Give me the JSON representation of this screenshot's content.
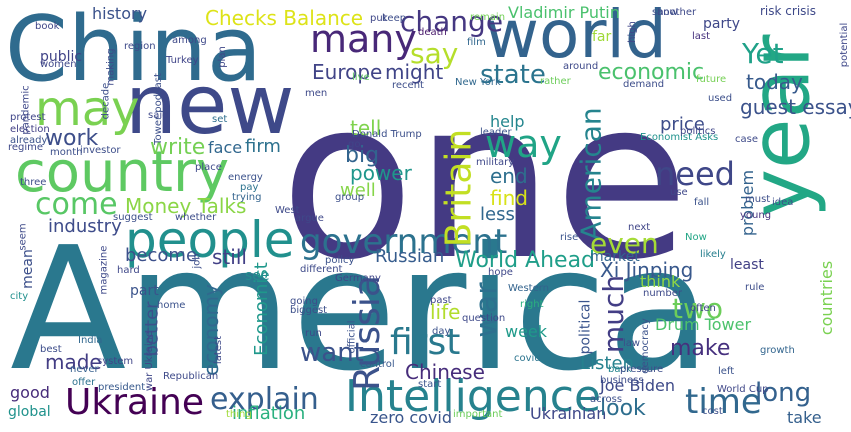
{
  "words": [
    {
      "text": "America",
      "color": "#2a788e"
    },
    {
      "text": "one",
      "color": "#443a83"
    },
    {
      "text": "China",
      "color": "#2f6b8e"
    },
    {
      "text": "new",
      "color": "#3e4989"
    },
    {
      "text": "world",
      "color": "#33638d"
    },
    {
      "text": "year",
      "color": "#22a785"
    },
    {
      "text": "country",
      "color": "#5ec962"
    },
    {
      "text": "people",
      "color": "#21908d"
    },
    {
      "text": "may",
      "color": "#7ad151"
    },
    {
      "text": "Intelligence",
      "color": "#26828e"
    },
    {
      "text": "Ukraine",
      "color": "#440154"
    },
    {
      "text": "government",
      "color": "#2c728e"
    },
    {
      "text": "explain",
      "color": "#355f8d"
    },
    {
      "text": "Russia",
      "color": "#3b528b"
    },
    {
      "text": "many",
      "color": "#482878"
    },
    {
      "text": "time",
      "color": "#31688e"
    },
    {
      "text": "first",
      "color": "#29798e"
    },
    {
      "text": "Britain",
      "color": "#c2df23"
    },
    {
      "text": "WorldAhead",
      "color": "#35b779"
    },
    {
      "text": "way",
      "color": "#20a486"
    },
    {
      "text": "American",
      "color": "#25848e"
    },
    {
      "text": "much",
      "color": "#433e85"
    },
    {
      "text": "need",
      "color": "#3f4788"
    },
    {
      "text": "war",
      "color": "#2d708e"
    },
    {
      "text": "come",
      "color": "#58c765"
    },
    {
      "text": "say",
      "color": "#b5de2b"
    },
    {
      "text": "change",
      "color": "#453781"
    },
    {
      "text": "economic",
      "color": "#4ac16d"
    },
    {
      "text": "even",
      "color": "#a5db36"
    },
    {
      "text": "long",
      "color": "#34618d"
    },
    {
      "text": "two",
      "color": "#6ccd5a"
    },
    {
      "text": "Yet",
      "color": "#1fa188"
    },
    {
      "text": "want",
      "color": "#3b528b"
    },
    {
      "text": "make",
      "color": "#46307e"
    },
    {
      "text": "Chinese",
      "color": "#472d7b"
    },
    {
      "text": "World Ahead",
      "color": "#1f9e89"
    },
    {
      "text": "Xi Jinping",
      "color": "#38588c"
    },
    {
      "text": "Checks Balance",
      "color": "#dde318"
    },
    {
      "text": "state",
      "color": "#2b748e"
    },
    {
      "text": "Europe",
      "color": "#414487"
    },
    {
      "text": "might",
      "color": "#404588"
    },
    {
      "text": "today",
      "color": "#375a8c"
    },
    {
      "text": "guest essay",
      "color": "#3b528b"
    },
    {
      "text": "write",
      "color": "#75d054"
    },
    {
      "text": "work",
      "color": "#3d4e8a"
    },
    {
      "text": "big",
      "color": "#32648e"
    },
    {
      "text": "power",
      "color": "#1f968b"
    },
    {
      "text": "end",
      "color": "#2e6f8e"
    },
    {
      "text": "tell",
      "color": "#7fd34e"
    },
    {
      "text": "find",
      "color": "#d8e219"
    },
    {
      "text": "well",
      "color": "#86d549"
    },
    {
      "text": "less",
      "color": "#31678e"
    },
    {
      "text": "Money Talks",
      "color": "#8bd646"
    },
    {
      "text": "industry",
      "color": "#3e4c8a"
    },
    {
      "text": "become",
      "color": "#3c508b"
    },
    {
      "text": "still",
      "color": "#424086"
    },
    {
      "text": "Russian",
      "color": "#365c8d"
    },
    {
      "text": "life",
      "color": "#b2dd2d"
    },
    {
      "text": "week",
      "color": "#1f9a8a"
    },
    {
      "text": "Listen",
      "color": "#26818e"
    },
    {
      "text": "Joe Biden",
      "color": "#3e4a89"
    },
    {
      "text": "Ukrainian",
      "color": "#3f4889"
    },
    {
      "text": "look",
      "color": "#2e6e8e"
    },
    {
      "text": "inflation",
      "color": "#2ab07f"
    },
    {
      "text": "zero covid",
      "color": "#39558c"
    },
    {
      "text": "Economist",
      "color": "#1f988b"
    },
    {
      "text": "economy",
      "color": "#31688e"
    },
    {
      "text": "better",
      "color": "#3b518b"
    },
    {
      "text": "made",
      "color": "#433d84"
    },
    {
      "text": "good",
      "color": "#472c7a"
    },
    {
      "text": "global",
      "color": "#20928c"
    },
    {
      "text": "history",
      "color": "#3b528b"
    },
    {
      "text": "Vladimir Putin",
      "color": "#4ac16d"
    },
    {
      "text": "public",
      "color": "#404387"
    },
    {
      "text": "face",
      "color": "#31678e"
    },
    {
      "text": "firm",
      "color": "#2d718e"
    },
    {
      "text": "price",
      "color": "#3d4d8a"
    },
    {
      "text": "help",
      "color": "#24868e"
    },
    {
      "text": "political",
      "color": "#3a548c"
    },
    {
      "text": "problem",
      "color": "#33628d"
    },
    {
      "text": "think",
      "color": "#8fd744"
    },
    {
      "text": "Drum Tower",
      "color": "#4cc26c"
    },
    {
      "text": "countries",
      "color": "#7ad151"
    },
    {
      "text": "party",
      "color": "#3f4889"
    },
    {
      "text": "market",
      "color": "#32658e"
    },
    {
      "text": "least",
      "color": "#424186"
    },
    {
      "text": "take",
      "color": "#35608d"
    },
    {
      "text": "mean",
      "color": "#3c4f8a"
    },
    {
      "text": "part",
      "color": "#3a538b"
    },
    {
      "text": "see",
      "color": "#228c8d"
    },
    {
      "text": "risk crisis",
      "color": "#3e4989"
    },
    {
      "text": "book",
      "color": "#404688"
    },
    {
      "text": "put",
      "color": "#3f4788"
    },
    {
      "text": "remain",
      "color": "#73d056"
    },
    {
      "text": "show",
      "color": "#3d4e8a"
    },
    {
      "text": "high",
      "color": "#404688"
    },
    {
      "text": "last",
      "color": "#46327e"
    },
    {
      "text": "region",
      "color": "#3e4a89"
    },
    {
      "text": "among",
      "color": "#3e4989"
    },
    {
      "text": "Turkey",
      "color": "#404588"
    },
    {
      "text": "women",
      "color": "#3f4889"
    },
    {
      "text": "death",
      "color": "#48186a"
    },
    {
      "text": "film",
      "color": "#31678e"
    },
    {
      "text": "far",
      "color": "#a0da39"
    },
    {
      "text": "future",
      "color": "#75d054"
    },
    {
      "text": "New York",
      "color": "#31688e"
    },
    {
      "text": "Donald Trump",
      "color": "#3c4f8a"
    },
    {
      "text": "Economist Asks",
      "color": "#20928c"
    },
    {
      "text": "energy",
      "color": "#3b528b"
    },
    {
      "text": "pay",
      "color": "#2c738e"
    },
    {
      "text": "trying",
      "color": "#33638d"
    },
    {
      "text": "three",
      "color": "#3d4d8a"
    },
    {
      "text": "West",
      "color": "#3e4a89"
    },
    {
      "text": "argue",
      "color": "#3f4889"
    },
    {
      "text": "young",
      "color": "#46337f"
    },
    {
      "text": "idea",
      "color": "#3c4f8a"
    },
    {
      "text": "next",
      "color": "#404688"
    },
    {
      "text": "likely",
      "color": "#277f8e"
    },
    {
      "text": "rise",
      "color": "#3a538b"
    },
    {
      "text": "Now",
      "color": "#21a585"
    },
    {
      "text": "hope",
      "color": "#3f4889"
    },
    {
      "text": "Western",
      "color": "#33638d"
    },
    {
      "text": "rule",
      "color": "#3d4d8a"
    },
    {
      "text": "often",
      "color": "#404688"
    },
    {
      "text": "growth",
      "color": "#32658e"
    },
    {
      "text": "left",
      "color": "#3b528b"
    },
    {
      "text": "back",
      "color": "#25858e"
    },
    {
      "text": "business",
      "color": "#3d4d8a"
    },
    {
      "text": "World Cup",
      "color": "#3f4788"
    },
    {
      "text": "question",
      "color": "#3e4989"
    },
    {
      "text": "day",
      "color": "#3b528b"
    },
    {
      "text": "past",
      "color": "#3f4889"
    },
    {
      "text": "right",
      "color": "#2ab07f"
    },
    {
      "text": "covid",
      "color": "#2b748e"
    },
    {
      "text": "start",
      "color": "#3a548c"
    },
    {
      "text": "law",
      "color": "#3c4f8a"
    },
    {
      "text": "important",
      "color": "#6ccd5a"
    },
    {
      "text": "thing",
      "color": "#a0da39"
    },
    {
      "text": "president",
      "color": "#38598c"
    },
    {
      "text": "Republican",
      "color": "#3e4a89"
    },
    {
      "text": "offer",
      "color": "#2c728e"
    },
    {
      "text": "never",
      "color": "#355f8d"
    },
    {
      "text": "best",
      "color": "#3d4d8a"
    },
    {
      "text": "India",
      "color": "#31688e"
    },
    {
      "text": "system",
      "color": "#404588"
    },
    {
      "text": "city",
      "color": "#21908d"
    },
    {
      "text": "regime",
      "color": "#3e4989"
    },
    {
      "text": "month",
      "color": "#3c4f8a"
    },
    {
      "text": "investor",
      "color": "#3d4e8a"
    },
    {
      "text": "election",
      "color": "#424086"
    },
    {
      "text": "protest",
      "color": "#404688"
    },
    {
      "text": "already",
      "color": "#3b528b"
    },
    {
      "text": "making",
      "color": "#3e4a89"
    },
    {
      "text": "said",
      "color": "#3f4889"
    },
    {
      "text": "set",
      "color": "#2e6e8e"
    },
    {
      "text": "go",
      "color": "#404588"
    },
    {
      "text": "men",
      "color": "#3e4989"
    },
    {
      "text": "live",
      "color": "#5ec962"
    },
    {
      "text": "control",
      "color": "#38598c"
    },
    {
      "text": "recent",
      "color": "#3d4e8a"
    },
    {
      "text": "group",
      "color": "#3c4f8a"
    },
    {
      "text": "leader",
      "color": "#3b528b"
    },
    {
      "text": "military",
      "color": "#3f4889"
    },
    {
      "text": "politics",
      "color": "#404688"
    },
    {
      "text": "case",
      "color": "#3e4a89"
    },
    {
      "text": "used",
      "color": "#3c4f8a"
    },
    {
      "text": "demand",
      "color": "#3d4d8a"
    },
    {
      "text": "around",
      "color": "#3e4989"
    },
    {
      "text": "rather",
      "color": "#6ccd5a"
    },
    {
      "text": "fall",
      "color": "#3b528b"
    },
    {
      "text": "use",
      "color": "#3f4889"
    },
    {
      "text": "must",
      "color": "#3d4e8a"
    },
    {
      "text": "another",
      "color": "#3e4989"
    },
    {
      "text": "plan",
      "color": "#3f4788"
    },
    {
      "text": "place",
      "color": "#3e4a89"
    },
    {
      "text": "whether",
      "color": "#3d4d8a"
    },
    {
      "text": "suggest",
      "color": "#3c4f8a"
    },
    {
      "text": "magazine",
      "color": "#3e4989"
    },
    {
      "text": "hard",
      "color": "#3f4889"
    },
    {
      "text": "job",
      "color": "#3d4e8a"
    },
    {
      "text": "different",
      "color": "#3e4a89"
    },
    {
      "text": "policy",
      "color": "#3b528b"
    },
    {
      "text": "Germany",
      "color": "#404588"
    },
    {
      "text": "going",
      "color": "#3d4d8a"
    },
    {
      "text": "biggest",
      "color": "#3c4f8a"
    },
    {
      "text": "run",
      "color": "#3e4989"
    },
    {
      "text": "official",
      "color": "#3b528b"
    },
    {
      "text": "seem",
      "color": "#3e4a89"
    },
    {
      "text": "pandemic",
      "color": "#3f4889"
    },
    {
      "text": "decade",
      "color": "#3d4e8a"
    },
    {
      "text": "Tower podcast",
      "color": "#3c4f8a"
    },
    {
      "text": "home",
      "color": "#3b528b"
    },
    {
      "text": "war Ukraine",
      "color": "#3f4788"
    },
    {
      "text": "latest",
      "color": "#3e4989"
    },
    {
      "text": "keep",
      "color": "#3d4d8a"
    },
    {
      "text": "cost",
      "color": "#3c4f8a"
    },
    {
      "text": "number",
      "color": "#3e4a89"
    },
    {
      "text": "democracy",
      "color": "#3b528b"
    },
    {
      "text": "potential",
      "color": "#3f4889"
    },
    {
      "text": "pressure",
      "color": "#3d4e8a"
    },
    {
      "text": "across",
      "color": "#3c4f8a"
    }
  ]
}
